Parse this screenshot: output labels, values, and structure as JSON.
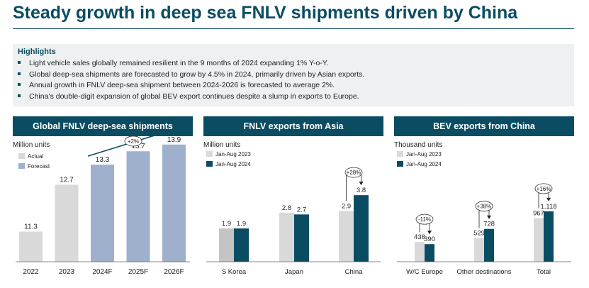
{
  "title": "Steady growth in deep sea FNLV shipments driven by China",
  "highlights": {
    "heading": "Highlights",
    "items": [
      "Light vehicle sales globally remained resilient in the 9 months of 2024 expanding 1% Y-o-Y.",
      "Global deep-sea shipments are forecasted to grow by 4.5% in 2024, primarily driven by Asian exports.",
      "Annual growth in FNLV deep-sea shipment between 2024-2026 is forecasted to average 2%.",
      "China’s double-digit expansion of global BEV export continues despite a slump in exports to Europe."
    ]
  },
  "colors": {
    "brand": "#0a4d63",
    "actual": "#d9d9d9",
    "forecast": "#9fb0cc",
    "prior": "#d9d9d9",
    "current": "#0a4d63"
  },
  "chart_data": [
    {
      "type": "bar",
      "title": "Global FNLV deep-sea shipments",
      "ylabel": "Million units",
      "categories": [
        "2022",
        "2023",
        "2024F",
        "2025F",
        "2026F"
      ],
      "values": [
        11.3,
        12.7,
        13.3,
        13.7,
        13.9
      ],
      "value_labels": [
        "11.3",
        "12.7",
        "13.3",
        "13.7",
        "13.9"
      ],
      "kinds": [
        "Actual",
        "Actual",
        "Forecast",
        "Forecast",
        "Forecast"
      ],
      "legend": [
        "Actual",
        "Forecast"
      ],
      "legend_position": "top-left",
      "annotation": "+2%",
      "y_axis_shown": false
    },
    {
      "type": "bar",
      "title": "FNLV exports from Asia",
      "ylabel": "Million units",
      "categories": [
        "S Korea",
        "Japan",
        "China"
      ],
      "series": [
        {
          "name": "Jan-Aug 2023",
          "values": [
            1.9,
            2.8,
            2.9
          ],
          "labels": [
            "1.9",
            "2.8",
            "2.9"
          ]
        },
        {
          "name": "Jan-Aug 2024",
          "values": [
            1.9,
            2.7,
            3.8
          ],
          "labels": [
            "1.9",
            "2.7",
            "3.8"
          ]
        }
      ],
      "legend_position": "top-left",
      "annotations": [
        {
          "category": "China",
          "text": "+28%"
        }
      ],
      "y_axis_shown": false
    },
    {
      "type": "bar",
      "title": "BEV exports from China",
      "ylabel": "Thousand units",
      "categories": [
        "W/C Europe",
        "Other destinations",
        "Total"
      ],
      "series": [
        {
          "name": "Jan-Aug 2023",
          "values": [
            438,
            529,
            967
          ],
          "labels": [
            "438",
            "529",
            "967"
          ]
        },
        {
          "name": "Jan-Aug 2024",
          "values": [
            390,
            728,
            1118
          ],
          "labels": [
            "390",
            "728",
            "1.118"
          ]
        }
      ],
      "legend_position": "top-left",
      "annotations": [
        {
          "category": "W/C Europe",
          "text": "-11%"
        },
        {
          "category": "Other destinations",
          "text": "+38%"
        },
        {
          "category": "Total",
          "text": "+16%"
        }
      ],
      "y_axis_shown": false
    }
  ]
}
